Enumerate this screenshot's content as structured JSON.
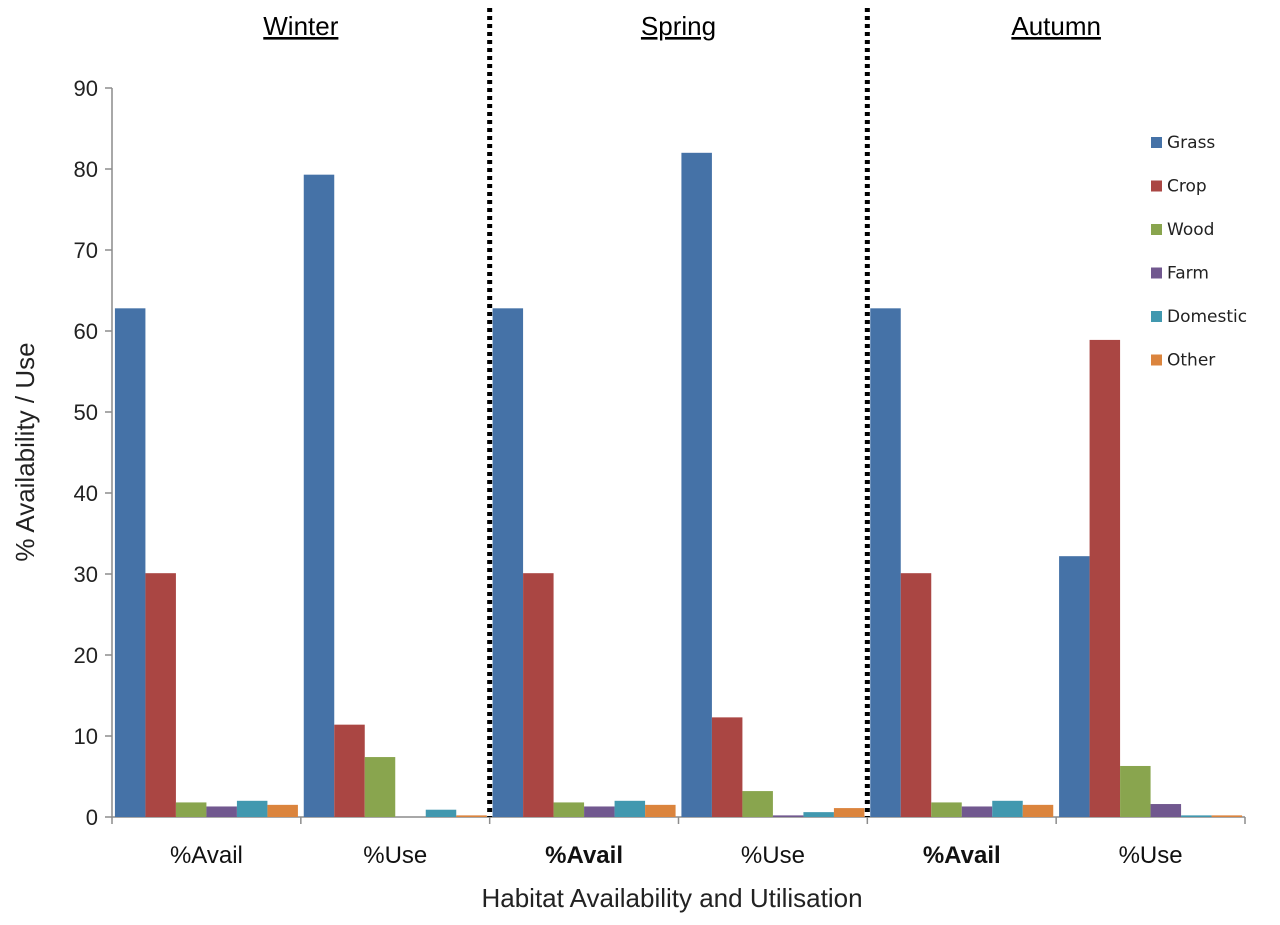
{
  "chart_data": {
    "type": "bar",
    "ylabel": "% Availability / Use",
    "xlabel": "Habitat Availability and Utilisation",
    "ylim": [
      0,
      90
    ],
    "yticks": [
      0,
      10,
      20,
      30,
      40,
      50,
      60,
      70,
      80,
      90
    ],
    "grid": false,
    "legend_position": "right",
    "seasons": [
      "Winter",
      "Spring",
      "Autumn"
    ],
    "categories": [
      "%Avail",
      "%Use",
      "%Avail",
      "%Use",
      "%Avail",
      "%Use"
    ],
    "bold_categories": [
      2,
      4
    ],
    "series": [
      {
        "name": "Grass",
        "color": "#4572a7",
        "values": [
          62.8,
          79.3,
          62.8,
          82.0,
          62.8,
          32.2
        ]
      },
      {
        "name": "Crop",
        "color": "#aa4643",
        "values": [
          30.1,
          11.4,
          30.1,
          12.3,
          30.1,
          58.9
        ]
      },
      {
        "name": "Wood",
        "color": "#89a54e",
        "values": [
          1.8,
          7.4,
          1.8,
          3.2,
          1.8,
          6.3
        ]
      },
      {
        "name": "Farm",
        "color": "#71588f",
        "values": [
          1.3,
          0,
          1.3,
          0.2,
          1.3,
          1.6
        ]
      },
      {
        "name": "Domestic",
        "color": "#4198af",
        "values": [
          2.0,
          0.9,
          2.0,
          0.6,
          2.0,
          0.2
        ]
      },
      {
        "name": "Other",
        "color": "#db843d",
        "values": [
          1.5,
          0.2,
          1.5,
          1.1,
          1.5,
          0.2
        ]
      }
    ]
  }
}
